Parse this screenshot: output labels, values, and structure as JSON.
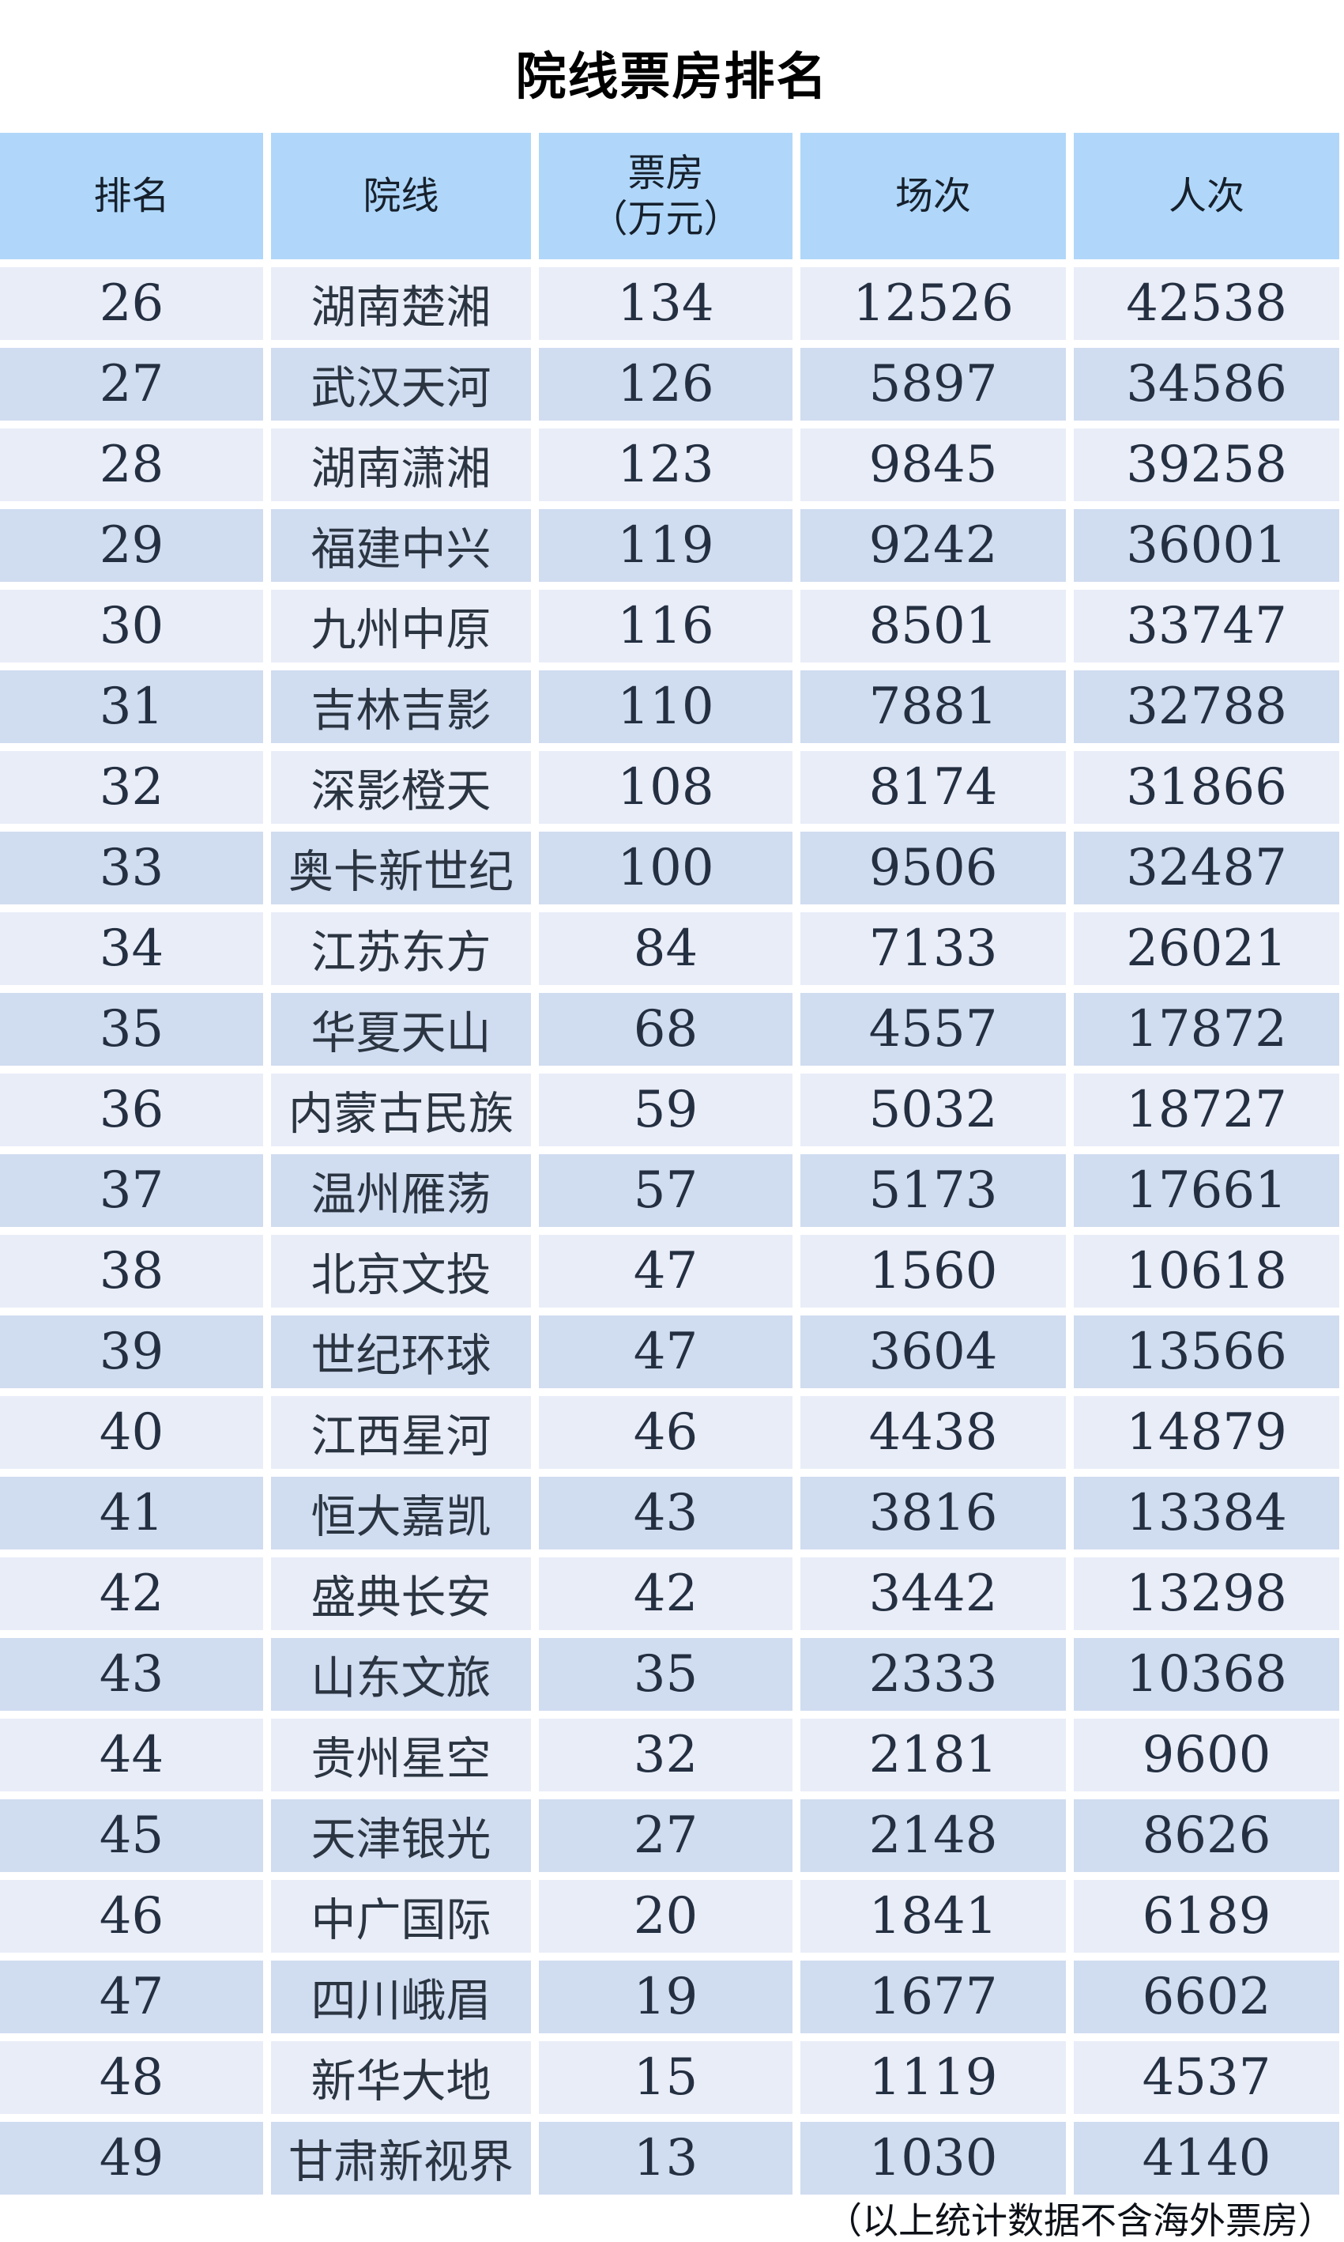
{
  "title": "院线票房排名",
  "table": {
    "headers": {
      "rank": "排名",
      "chain": "院线",
      "boxoffice_line1": "票房",
      "boxoffice_line2": "（万元）",
      "sessions": "场次",
      "admissions": "人次"
    },
    "rows": [
      {
        "rank": "26",
        "chain": "湖南楚湘",
        "boxoffice": "134",
        "sessions": "12526",
        "admissions": "42538"
      },
      {
        "rank": "27",
        "chain": "武汉天河",
        "boxoffice": "126",
        "sessions": "5897",
        "admissions": "34586"
      },
      {
        "rank": "28",
        "chain": "湖南潇湘",
        "boxoffice": "123",
        "sessions": "9845",
        "admissions": "39258"
      },
      {
        "rank": "29",
        "chain": "福建中兴",
        "boxoffice": "119",
        "sessions": "9242",
        "admissions": "36001"
      },
      {
        "rank": "30",
        "chain": "九州中原",
        "boxoffice": "116",
        "sessions": "8501",
        "admissions": "33747"
      },
      {
        "rank": "31",
        "chain": "吉林吉影",
        "boxoffice": "110",
        "sessions": "7881",
        "admissions": "32788"
      },
      {
        "rank": "32",
        "chain": "深影橙天",
        "boxoffice": "108",
        "sessions": "8174",
        "admissions": "31866"
      },
      {
        "rank": "33",
        "chain": "奥卡新世纪",
        "boxoffice": "100",
        "sessions": "9506",
        "admissions": "32487"
      },
      {
        "rank": "34",
        "chain": "江苏东方",
        "boxoffice": "84",
        "sessions": "7133",
        "admissions": "26021"
      },
      {
        "rank": "35",
        "chain": "华夏天山",
        "boxoffice": "68",
        "sessions": "4557",
        "admissions": "17872"
      },
      {
        "rank": "36",
        "chain": "内蒙古民族",
        "boxoffice": "59",
        "sessions": "5032",
        "admissions": "18727"
      },
      {
        "rank": "37",
        "chain": "温州雁荡",
        "boxoffice": "57",
        "sessions": "5173",
        "admissions": "17661"
      },
      {
        "rank": "38",
        "chain": "北京文投",
        "boxoffice": "47",
        "sessions": "1560",
        "admissions": "10618"
      },
      {
        "rank": "39",
        "chain": "世纪环球",
        "boxoffice": "47",
        "sessions": "3604",
        "admissions": "13566"
      },
      {
        "rank": "40",
        "chain": "江西星河",
        "boxoffice": "46",
        "sessions": "4438",
        "admissions": "14879"
      },
      {
        "rank": "41",
        "chain": "恒大嘉凯",
        "boxoffice": "43",
        "sessions": "3816",
        "admissions": "13384"
      },
      {
        "rank": "42",
        "chain": "盛典长安",
        "boxoffice": "42",
        "sessions": "3442",
        "admissions": "13298"
      },
      {
        "rank": "43",
        "chain": "山东文旅",
        "boxoffice": "35",
        "sessions": "2333",
        "admissions": "10368"
      },
      {
        "rank": "44",
        "chain": "贵州星空",
        "boxoffice": "32",
        "sessions": "2181",
        "admissions": "9600"
      },
      {
        "rank": "45",
        "chain": "天津银光",
        "boxoffice": "27",
        "sessions": "2148",
        "admissions": "8626"
      },
      {
        "rank": "46",
        "chain": "中广国际",
        "boxoffice": "20",
        "sessions": "1841",
        "admissions": "6189"
      },
      {
        "rank": "47",
        "chain": "四川峨眉",
        "boxoffice": "19",
        "sessions": "1677",
        "admissions": "6602"
      },
      {
        "rank": "48",
        "chain": "新华大地",
        "boxoffice": "15",
        "sessions": "1119",
        "admissions": "4537"
      },
      {
        "rank": "49",
        "chain": "甘肃新视界",
        "boxoffice": "13",
        "sessions": "1030",
        "admissions": "4140"
      }
    ]
  },
  "footnote": "（以上统计数据不含海外票房）",
  "colors": {
    "header_bg": "#b0d7f9",
    "row_light": "#e9edf8",
    "row_dark": "#d0dcf0",
    "text": "#202b3a",
    "title": "#000000"
  },
  "chart_data": {
    "type": "table",
    "title": "院线票房排名",
    "columns": [
      "排名",
      "院线",
      "票房（万元）",
      "场次",
      "人次"
    ],
    "rows": [
      [
        26,
        "湖南楚湘",
        134,
        12526,
        42538
      ],
      [
        27,
        "武汉天河",
        126,
        5897,
        34586
      ],
      [
        28,
        "湖南潇湘",
        123,
        9845,
        39258
      ],
      [
        29,
        "福建中兴",
        119,
        9242,
        36001
      ],
      [
        30,
        "九州中原",
        116,
        8501,
        33747
      ],
      [
        31,
        "吉林吉影",
        110,
        7881,
        32788
      ],
      [
        32,
        "深影橙天",
        108,
        8174,
        31866
      ],
      [
        33,
        "奥卡新世纪",
        100,
        9506,
        32487
      ],
      [
        34,
        "江苏东方",
        84,
        7133,
        26021
      ],
      [
        35,
        "华夏天山",
        68,
        4557,
        17872
      ],
      [
        36,
        "内蒙古民族",
        59,
        5032,
        18727
      ],
      [
        37,
        "温州雁荡",
        57,
        5173,
        17661
      ],
      [
        38,
        "北京文投",
        47,
        1560,
        10618
      ],
      [
        39,
        "世纪环球",
        47,
        3604,
        13566
      ],
      [
        40,
        "江西星河",
        46,
        4438,
        14879
      ],
      [
        41,
        "恒大嘉凯",
        43,
        3816,
        13384
      ],
      [
        42,
        "盛典长安",
        42,
        3442,
        13298
      ],
      [
        43,
        "山东文旅",
        35,
        2333,
        10368
      ],
      [
        44,
        "贵州星空",
        32,
        2181,
        9600
      ],
      [
        45,
        "天津银光",
        27,
        2148,
        8626
      ],
      [
        46,
        "中广国际",
        20,
        1841,
        6189
      ],
      [
        47,
        "四川峨眉",
        19,
        1677,
        6602
      ],
      [
        48,
        "新华大地",
        15,
        1119,
        4537
      ],
      [
        49,
        "甘肃新视界",
        13,
        1030,
        4140
      ]
    ],
    "footnote": "（以上统计数据不含海外票房）"
  }
}
